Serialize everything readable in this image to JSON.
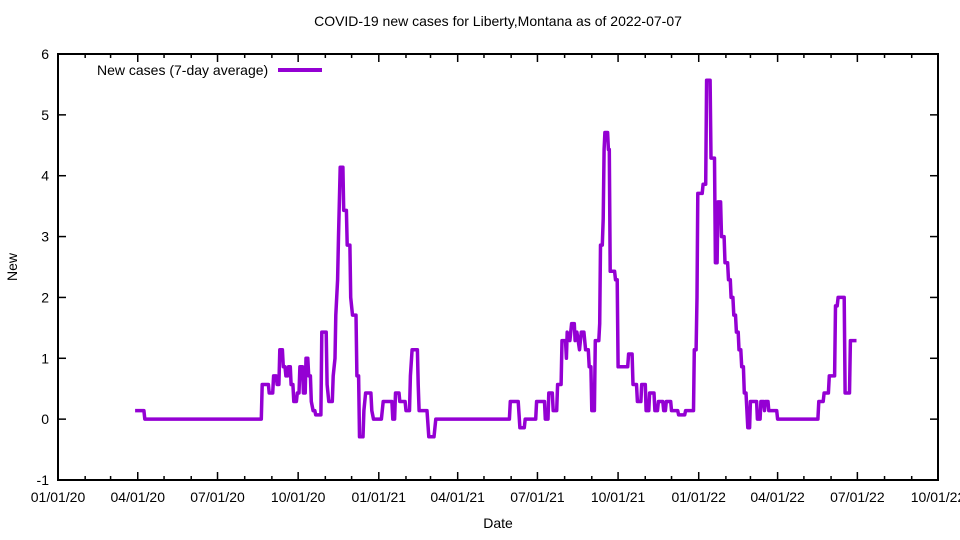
{
  "chart_data": {
    "type": "line",
    "title": "COVID-19 new cases for Liberty,Montana as of 2022-07-07",
    "xlabel": "Date",
    "ylabel": "New",
    "legend": {
      "label": "New cases (7-day average)",
      "position": "top-left"
    },
    "line_color": "#9400D3",
    "axis_color": "#000000",
    "background_color": "#ffffff",
    "grid": false,
    "ylim": [
      -1,
      6
    ],
    "y_ticks": [
      -1,
      0,
      1,
      2,
      3,
      4,
      5,
      6
    ],
    "x_range": [
      "2020-01-01",
      "2022-10-01"
    ],
    "x_minor_tick_interval": "month",
    "x_major_ticks": [
      {
        "date": "2020-01-01",
        "label": "01/01/20"
      },
      {
        "date": "2020-04-01",
        "label": "04/01/20"
      },
      {
        "date": "2020-07-01",
        "label": "07/01/20"
      },
      {
        "date": "2020-10-01",
        "label": "10/01/20"
      },
      {
        "date": "2021-01-01",
        "label": "01/01/21"
      },
      {
        "date": "2021-04-01",
        "label": "04/01/21"
      },
      {
        "date": "2021-07-01",
        "label": "07/01/21"
      },
      {
        "date": "2021-10-01",
        "label": "10/01/21"
      },
      {
        "date": "2022-01-01",
        "label": "01/01/22"
      },
      {
        "date": "2022-04-01",
        "label": "04/01/22"
      },
      {
        "date": "2022-07-01",
        "label": "07/01/22"
      },
      {
        "date": "2022-10-01",
        "label": "10/01/22"
      }
    ],
    "series": [
      {
        "name": "New cases (7-day average)",
        "color": "#9400D3",
        "points": [
          [
            "2020-03-29",
            0.14
          ],
          [
            "2020-04-08",
            0.14
          ],
          [
            "2020-04-09",
            0
          ],
          [
            "2020-08-20",
            0
          ],
          [
            "2020-08-21",
            0.57
          ],
          [
            "2020-08-28",
            0.57
          ],
          [
            "2020-08-29",
            0.43
          ],
          [
            "2020-09-02",
            0.43
          ],
          [
            "2020-09-03",
            0.71
          ],
          [
            "2020-09-06",
            0.71
          ],
          [
            "2020-09-07",
            0.57
          ],
          [
            "2020-09-09",
            0.57
          ],
          [
            "2020-09-10",
            1.14
          ],
          [
            "2020-09-13",
            1.14
          ],
          [
            "2020-09-14",
            0.86
          ],
          [
            "2020-09-16",
            0.86
          ],
          [
            "2020-09-17",
            0.71
          ],
          [
            "2020-09-19",
            0.71
          ],
          [
            "2020-09-20",
            0.86
          ],
          [
            "2020-09-22",
            0.86
          ],
          [
            "2020-09-23",
            0.57
          ],
          [
            "2020-09-25",
            0.57
          ],
          [
            "2020-09-26",
            0.29
          ],
          [
            "2020-09-29",
            0.29
          ],
          [
            "2020-09-30",
            0.43
          ],
          [
            "2020-10-02",
            0.43
          ],
          [
            "2020-10-03",
            0.86
          ],
          [
            "2020-10-06",
            0.86
          ],
          [
            "2020-10-07",
            0.43
          ],
          [
            "2020-10-09",
            0.43
          ],
          [
            "2020-10-10",
            1.0
          ],
          [
            "2020-10-12",
            1.0
          ],
          [
            "2020-10-13",
            0.71
          ],
          [
            "2020-10-15",
            0.71
          ],
          [
            "2020-10-16",
            0.29
          ],
          [
            "2020-10-18",
            0.14
          ],
          [
            "2020-10-20",
            0.14
          ],
          [
            "2020-10-21",
            0.07
          ],
          [
            "2020-10-27",
            0.07
          ],
          [
            "2020-10-28",
            1.43
          ],
          [
            "2020-11-02",
            1.43
          ],
          [
            "2020-11-03",
            0.57
          ],
          [
            "2020-11-05",
            0.29
          ],
          [
            "2020-11-09",
            0.29
          ],
          [
            "2020-11-10",
            0.71
          ],
          [
            "2020-11-12",
            1.0
          ],
          [
            "2020-11-13",
            1.71
          ],
          [
            "2020-11-15",
            2.29
          ],
          [
            "2020-11-16",
            3.0
          ],
          [
            "2020-11-18",
            4.14
          ],
          [
            "2020-11-21",
            4.14
          ],
          [
            "2020-11-22",
            3.43
          ],
          [
            "2020-11-25",
            3.43
          ],
          [
            "2020-11-26",
            2.86
          ],
          [
            "2020-11-29",
            2.86
          ],
          [
            "2020-11-30",
            2.0
          ],
          [
            "2020-12-02",
            1.71
          ],
          [
            "2020-12-06",
            1.71
          ],
          [
            "2020-12-07",
            0.71
          ],
          [
            "2020-12-09",
            0.71
          ],
          [
            "2020-12-10",
            -0.29
          ],
          [
            "2020-12-14",
            -0.29
          ],
          [
            "2020-12-15",
            0.14
          ],
          [
            "2020-12-17",
            0.43
          ],
          [
            "2020-12-23",
            0.43
          ],
          [
            "2020-12-24",
            0.14
          ],
          [
            "2020-12-26",
            0
          ],
          [
            "2021-01-04",
            0
          ],
          [
            "2021-01-06",
            0.29
          ],
          [
            "2021-01-16",
            0.29
          ],
          [
            "2021-01-17",
            0
          ],
          [
            "2021-01-19",
            0
          ],
          [
            "2021-01-20",
            0.43
          ],
          [
            "2021-01-24",
            0.43
          ],
          [
            "2021-01-25",
            0.29
          ],
          [
            "2021-01-31",
            0.29
          ],
          [
            "2021-02-01",
            0.14
          ],
          [
            "2021-02-05",
            0.14
          ],
          [
            "2021-02-06",
            0.71
          ],
          [
            "2021-02-08",
            1.14
          ],
          [
            "2021-02-14",
            1.14
          ],
          [
            "2021-02-15",
            0.57
          ],
          [
            "2021-02-16",
            0.14
          ],
          [
            "2021-02-25",
            0.14
          ],
          [
            "2021-02-27",
            -0.29
          ],
          [
            "2021-03-05",
            -0.29
          ],
          [
            "2021-03-07",
            0
          ],
          [
            "2021-05-30",
            0
          ],
          [
            "2021-05-31",
            0.29
          ],
          [
            "2021-06-09",
            0.29
          ],
          [
            "2021-06-11",
            -0.14
          ],
          [
            "2021-06-16",
            -0.14
          ],
          [
            "2021-06-17",
            0
          ],
          [
            "2021-06-29",
            0
          ],
          [
            "2021-06-30",
            0.29
          ],
          [
            "2021-07-09",
            0.29
          ],
          [
            "2021-07-10",
            0
          ],
          [
            "2021-07-13",
            0
          ],
          [
            "2021-07-14",
            0.43
          ],
          [
            "2021-07-18",
            0.43
          ],
          [
            "2021-07-19",
            0.14
          ],
          [
            "2021-07-23",
            0.14
          ],
          [
            "2021-07-24",
            0.57
          ],
          [
            "2021-07-28",
            0.57
          ],
          [
            "2021-07-29",
            1.29
          ],
          [
            "2021-08-02",
            1.29
          ],
          [
            "2021-08-03",
            1.0
          ],
          [
            "2021-08-04",
            1.43
          ],
          [
            "2021-08-07",
            1.29
          ],
          [
            "2021-08-09",
            1.57
          ],
          [
            "2021-08-12",
            1.57
          ],
          [
            "2021-08-13",
            1.29
          ],
          [
            "2021-08-15",
            1.43
          ],
          [
            "2021-08-18",
            1.14
          ],
          [
            "2021-08-20",
            1.43
          ],
          [
            "2021-08-23",
            1.43
          ],
          [
            "2021-08-25",
            1.14
          ],
          [
            "2021-08-28",
            1.14
          ],
          [
            "2021-08-29",
            0.86
          ],
          [
            "2021-08-31",
            0.86
          ],
          [
            "2021-09-01",
            0.14
          ],
          [
            "2021-09-04",
            0.14
          ],
          [
            "2021-09-05",
            1.29
          ],
          [
            "2021-09-09",
            1.29
          ],
          [
            "2021-09-10",
            1.57
          ],
          [
            "2021-09-11",
            2.86
          ],
          [
            "2021-09-13",
            2.86
          ],
          [
            "2021-09-14",
            3.29
          ],
          [
            "2021-09-15",
            4.43
          ],
          [
            "2021-09-16",
            4.71
          ],
          [
            "2021-09-19",
            4.71
          ],
          [
            "2021-09-20",
            4.43
          ],
          [
            "2021-09-21",
            4.43
          ],
          [
            "2021-09-22",
            2.43
          ],
          [
            "2021-09-27",
            2.43
          ],
          [
            "2021-09-28",
            2.29
          ],
          [
            "2021-09-30",
            2.29
          ],
          [
            "2021-10-01",
            0.86
          ],
          [
            "2021-10-12",
            0.86
          ],
          [
            "2021-10-13",
            1.07
          ],
          [
            "2021-10-17",
            1.07
          ],
          [
            "2021-10-18",
            0.57
          ],
          [
            "2021-10-22",
            0.57
          ],
          [
            "2021-10-23",
            0.29
          ],
          [
            "2021-10-27",
            0.29
          ],
          [
            "2021-10-28",
            0.57
          ],
          [
            "2021-11-01",
            0.57
          ],
          [
            "2021-11-02",
            0.14
          ],
          [
            "2021-11-05",
            0.14
          ],
          [
            "2021-11-06",
            0.43
          ],
          [
            "2021-11-11",
            0.43
          ],
          [
            "2021-11-12",
            0.14
          ],
          [
            "2021-11-15",
            0.14
          ],
          [
            "2021-11-16",
            0.29
          ],
          [
            "2021-11-21",
            0.29
          ],
          [
            "2021-11-22",
            0.14
          ],
          [
            "2021-11-24",
            0.14
          ],
          [
            "2021-11-25",
            0.29
          ],
          [
            "2021-11-30",
            0.29
          ],
          [
            "2021-12-01",
            0.14
          ],
          [
            "2021-12-08",
            0.14
          ],
          [
            "2021-12-09",
            0.07
          ],
          [
            "2021-12-16",
            0.07
          ],
          [
            "2021-12-17",
            0.14
          ],
          [
            "2021-12-26",
            0.14
          ],
          [
            "2021-12-27",
            1.14
          ],
          [
            "2021-12-29",
            1.14
          ],
          [
            "2021-12-30",
            2.0
          ],
          [
            "2021-12-31",
            3.71
          ],
          [
            "2022-01-05",
            3.71
          ],
          [
            "2022-01-06",
            3.86
          ],
          [
            "2022-01-09",
            3.86
          ],
          [
            "2022-01-10",
            5.57
          ],
          [
            "2022-01-14",
            5.57
          ],
          [
            "2022-01-15",
            4.29
          ],
          [
            "2022-01-19",
            4.29
          ],
          [
            "2022-01-20",
            2.57
          ],
          [
            "2022-01-22",
            2.57
          ],
          [
            "2022-01-23",
            3.57
          ],
          [
            "2022-01-26",
            3.57
          ],
          [
            "2022-01-27",
            3.0
          ],
          [
            "2022-01-30",
            3.0
          ],
          [
            "2022-01-31",
            2.57
          ],
          [
            "2022-02-03",
            2.57
          ],
          [
            "2022-02-04",
            2.29
          ],
          [
            "2022-02-06",
            2.29
          ],
          [
            "2022-02-07",
            2.0
          ],
          [
            "2022-02-09",
            2.0
          ],
          [
            "2022-02-10",
            1.71
          ],
          [
            "2022-02-12",
            1.71
          ],
          [
            "2022-02-13",
            1.43
          ],
          [
            "2022-02-15",
            1.43
          ],
          [
            "2022-02-16",
            1.14
          ],
          [
            "2022-02-18",
            1.14
          ],
          [
            "2022-02-19",
            0.86
          ],
          [
            "2022-02-21",
            0.86
          ],
          [
            "2022-02-22",
            0.43
          ],
          [
            "2022-02-24",
            0.43
          ],
          [
            "2022-02-26",
            -0.14
          ],
          [
            "2022-02-28",
            -0.14
          ],
          [
            "2022-03-01",
            0.29
          ],
          [
            "2022-03-08",
            0.29
          ],
          [
            "2022-03-09",
            0
          ],
          [
            "2022-03-12",
            0
          ],
          [
            "2022-03-13",
            0.29
          ],
          [
            "2022-03-16",
            0.29
          ],
          [
            "2022-03-17",
            0.14
          ],
          [
            "2022-03-18",
            0.29
          ],
          [
            "2022-03-21",
            0.29
          ],
          [
            "2022-03-22",
            0.14
          ],
          [
            "2022-03-31",
            0.14
          ],
          [
            "2022-04-01",
            0
          ],
          [
            "2022-05-17",
            0
          ],
          [
            "2022-05-18",
            0.29
          ],
          [
            "2022-05-23",
            0.29
          ],
          [
            "2022-05-24",
            0.43
          ],
          [
            "2022-05-29",
            0.43
          ],
          [
            "2022-05-30",
            0.71
          ],
          [
            "2022-06-05",
            0.71
          ],
          [
            "2022-06-06",
            1.86
          ],
          [
            "2022-06-08",
            1.86
          ],
          [
            "2022-06-09",
            2.0
          ],
          [
            "2022-06-16",
            2.0
          ],
          [
            "2022-06-17",
            0.43
          ],
          [
            "2022-06-22",
            0.43
          ],
          [
            "2022-06-23",
            1.29
          ],
          [
            "2022-06-30",
            1.29
          ]
        ]
      }
    ]
  }
}
